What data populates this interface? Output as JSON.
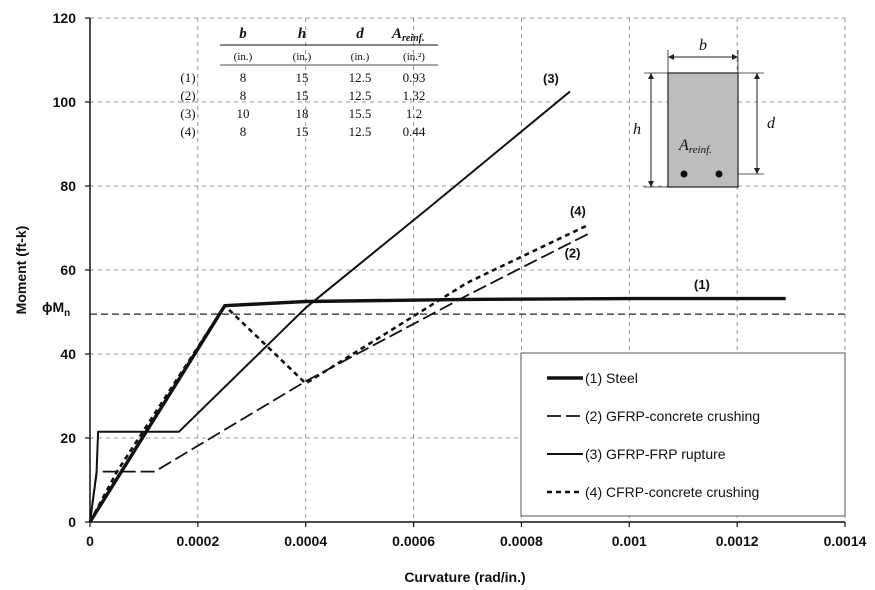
{
  "chart_data": {
    "type": "line",
    "xlabel": "Curvature (rad/in.)",
    "ylabel": "Moment (ft-k)",
    "xlim": [
      0,
      0.0014
    ],
    "ylim": [
      0,
      120
    ],
    "x_ticks": [
      "0",
      "0.0002",
      "0.0004",
      "0.0006",
      "0.0008",
      "0.001",
      "0.0012",
      "0.0014"
    ],
    "y_ticks": [
      "0",
      "20",
      "40",
      "60",
      "80",
      "100",
      "120"
    ],
    "grid": "dashed",
    "phiMn": {
      "label_main": "ϕM",
      "label_sub": "n",
      "value": 49.5
    },
    "series": [
      {
        "name": "(1) Steel",
        "tag": "(1)",
        "style": "thick",
        "x": [
          0,
          0.00025,
          0.0004,
          0.0007,
          0.001,
          0.00129
        ],
        "y": [
          0,
          51.5,
          52.5,
          53,
          53.2,
          53.2
        ]
      },
      {
        "name": "(2) GFRP-concrete crushing",
        "tag": "(2)",
        "style": "longdash",
        "x": [
          0,
          1.2e-05,
          0.00012,
          0.0004,
          0.0007,
          0.00093
        ],
        "y": [
          0,
          12,
          12,
          33.5,
          54,
          69
        ]
      },
      {
        "name": "(3) GFRP-FRP rupture",
        "tag": "(3)",
        "style": "solid",
        "x": [
          0,
          1.2e-05,
          1.5e-05,
          0.000165,
          0.0004,
          0.00063,
          0.00089
        ],
        "y": [
          0,
          11.5,
          21.5,
          21.5,
          51,
          75,
          102.5
        ]
      },
      {
        "name": "(4) CFRP-concrete crushing",
        "tag": "(4)",
        "style": "shortdash",
        "x": [
          0,
          5e-05,
          0.00025,
          0.0004,
          0.0007,
          0.00092
        ],
        "y": [
          0,
          12,
          51.5,
          33,
          57,
          70.5
        ]
      }
    ],
    "legend_position": "bottom-right",
    "table": {
      "headers": [
        "b",
        "h",
        "d",
        "A"
      ],
      "header_sub": "reinf.",
      "units": [
        "(in.)",
        "(in.)",
        "(in.)",
        "(in.²)"
      ],
      "rows": [
        {
          "id": "(1)",
          "b": "8",
          "h": "15",
          "d": "12.5",
          "a": "0.93"
        },
        {
          "id": "(2)",
          "b": "8",
          "h": "15",
          "d": "12.5",
          "a": "1.32"
        },
        {
          "id": "(3)",
          "b": "10",
          "h": "18",
          "d": "15.5",
          "a": "1.2"
        },
        {
          "id": "(4)",
          "b": "8",
          "h": "15",
          "d": "12.5",
          "a": "0.44"
        }
      ]
    },
    "section": {
      "b": "b",
      "h": "h",
      "d": "d",
      "areinf_main": "A",
      "areinf_sub": "reinf."
    }
  }
}
